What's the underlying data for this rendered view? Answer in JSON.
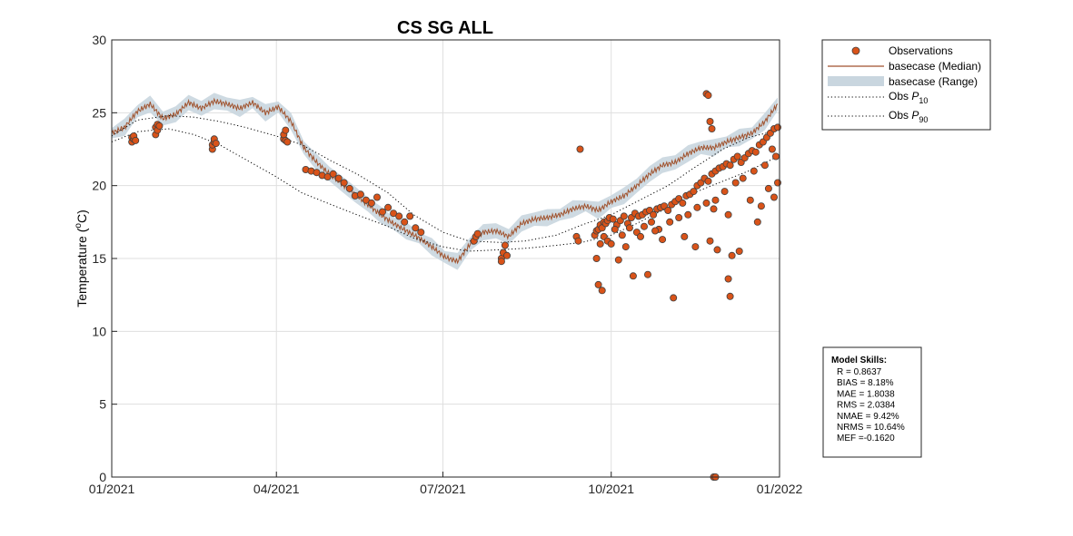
{
  "chart_data": {
    "type": "line",
    "title": "CS SG ALL",
    "ylabel": "Temperature (°C)",
    "ylabel_parts": {
      "main": "Temperature (",
      "sup": "o",
      "unit": "C)"
    },
    "xlabel": "",
    "xlim": [
      "2021-01-01",
      "2022-01-01"
    ],
    "ylim": [
      0,
      30
    ],
    "x_ticks": [
      "2021-01-01",
      "2021-04-01",
      "2021-07-01",
      "2021-10-01",
      "2022-01-01"
    ],
    "x_tick_labels": [
      "01/2021",
      "04/2021",
      "07/2021",
      "10/2021",
      "01/2022"
    ],
    "y_ticks": [
      0,
      5,
      10,
      15,
      20,
      25,
      30
    ],
    "grid": true,
    "legend_position": "outside-top-right",
    "legend": [
      {
        "label": "Observations",
        "kind": "marker"
      },
      {
        "label": "basecase (Median)",
        "kind": "line"
      },
      {
        "label": "basecase (Range)",
        "kind": "patch"
      },
      {
        "label": "Obs P10",
        "label_main": "Obs ",
        "label_p": "P",
        "label_sub": "10",
        "kind": "dotted"
      },
      {
        "label": "Obs P90",
        "label_main": "Obs ",
        "label_p": "P",
        "label_sub": "90",
        "kind": "dotted"
      }
    ],
    "colors": {
      "observations_fill": "#d95319",
      "observations_edge": "#404040",
      "median": "#a0522d",
      "range": "#c9d6df",
      "percentile": "#000000"
    },
    "series": [
      {
        "name": "basecase (Median)",
        "x": [
          "2021-01-01",
          "2021-01-08",
          "2021-01-15",
          "2021-01-22",
          "2021-01-29",
          "2021-02-05",
          "2021-02-12",
          "2021-02-19",
          "2021-02-26",
          "2021-03-05",
          "2021-03-12",
          "2021-03-19",
          "2021-03-26",
          "2021-04-02",
          "2021-04-09",
          "2021-04-16",
          "2021-04-23",
          "2021-04-30",
          "2021-05-07",
          "2021-05-14",
          "2021-05-21",
          "2021-05-28",
          "2021-06-04",
          "2021-06-11",
          "2021-06-18",
          "2021-06-25",
          "2021-07-02",
          "2021-07-09",
          "2021-07-16",
          "2021-07-23",
          "2021-07-30",
          "2021-08-06",
          "2021-08-13",
          "2021-08-20",
          "2021-08-27",
          "2021-09-03",
          "2021-09-10",
          "2021-09-17",
          "2021-09-24",
          "2021-10-01",
          "2021-10-08",
          "2021-10-15",
          "2021-10-22",
          "2021-10-29",
          "2021-11-05",
          "2021-11-12",
          "2021-11-19",
          "2021-11-26",
          "2021-12-03",
          "2021-12-10",
          "2021-12-17",
          "2021-12-24",
          "2021-12-31"
        ],
        "y": [
          23.6,
          24.0,
          25.1,
          25.6,
          24.6,
          24.9,
          25.7,
          25.3,
          25.8,
          25.6,
          25.3,
          25.7,
          25.0,
          25.4,
          24.4,
          22.6,
          21.6,
          20.8,
          20.1,
          19.4,
          18.7,
          18.0,
          17.4,
          16.9,
          16.4,
          15.8,
          15.1,
          14.8,
          16.0,
          16.8,
          16.9,
          16.5,
          17.4,
          17.7,
          17.8,
          18.0,
          18.4,
          18.6,
          18.3,
          18.9,
          19.3,
          20.0,
          20.8,
          21.4,
          21.6,
          22.2,
          22.6,
          22.6,
          23.0,
          23.3,
          23.6,
          24.4,
          25.6
        ]
      },
      {
        "name": "Obs P10",
        "x": [
          "2021-01-01",
          "2021-01-15",
          "2021-02-01",
          "2021-02-15",
          "2021-03-01",
          "2021-03-15",
          "2021-04-01",
          "2021-04-15",
          "2021-05-01",
          "2021-05-15",
          "2021-06-01",
          "2021-06-15",
          "2021-07-01",
          "2021-07-15",
          "2021-08-01",
          "2021-08-15",
          "2021-09-01",
          "2021-09-15",
          "2021-10-01",
          "2021-10-15",
          "2021-11-01",
          "2021-11-15",
          "2021-12-01",
          "2021-12-15",
          "2021-12-31"
        ],
        "y": [
          23.0,
          23.7,
          23.9,
          23.5,
          22.8,
          21.8,
          20.6,
          19.5,
          18.7,
          18.0,
          17.2,
          16.4,
          15.8,
          15.5,
          15.6,
          15.7,
          15.9,
          16.1,
          16.6,
          17.4,
          18.5,
          19.5,
          20.3,
          21.0,
          22.0
        ]
      },
      {
        "name": "Obs P90",
        "x": [
          "2021-01-01",
          "2021-01-15",
          "2021-02-01",
          "2021-02-15",
          "2021-03-01",
          "2021-03-15",
          "2021-04-01",
          "2021-04-15",
          "2021-05-01",
          "2021-05-15",
          "2021-06-01",
          "2021-06-15",
          "2021-07-01",
          "2021-07-15",
          "2021-08-01",
          "2021-08-15",
          "2021-09-01",
          "2021-09-15",
          "2021-10-01",
          "2021-10-15",
          "2021-11-01",
          "2021-11-15",
          "2021-12-01",
          "2021-12-15",
          "2021-12-31"
        ],
        "y": [
          23.4,
          24.5,
          24.8,
          24.7,
          24.4,
          24.0,
          23.4,
          22.8,
          21.7,
          20.8,
          19.5,
          18.0,
          16.8,
          16.2,
          16.1,
          16.2,
          16.6,
          17.3,
          18.0,
          18.9,
          20.0,
          21.2,
          22.5,
          23.3,
          23.8
        ]
      }
    ],
    "observations": {
      "name": "Observations",
      "x": [
        "2021-01-12",
        "2021-01-12",
        "2021-01-13",
        "2021-01-13",
        "2021-01-14",
        "2021-01-25",
        "2021-01-25",
        "2021-01-26",
        "2021-01-26",
        "2021-01-27",
        "2021-02-25",
        "2021-02-25",
        "2021-02-26",
        "2021-02-26",
        "2021-02-27",
        "2021-04-05",
        "2021-04-05",
        "2021-04-06",
        "2021-04-06",
        "2021-04-07",
        "2021-04-17",
        "2021-04-20",
        "2021-04-23",
        "2021-04-26",
        "2021-04-29",
        "2021-05-02",
        "2021-05-05",
        "2021-05-08",
        "2021-05-11",
        "2021-05-14",
        "2021-05-17",
        "2021-05-20",
        "2021-05-23",
        "2021-05-26",
        "2021-05-29",
        "2021-06-01",
        "2021-06-04",
        "2021-06-07",
        "2021-06-10",
        "2021-06-13",
        "2021-06-16",
        "2021-06-19",
        "2021-07-18",
        "2021-07-19",
        "2021-07-20",
        "2021-08-02",
        "2021-08-02",
        "2021-08-03",
        "2021-08-04",
        "2021-08-05",
        "2021-09-12",
        "2021-09-13",
        "2021-09-22",
        "2021-09-23",
        "2021-09-24",
        "2021-09-25",
        "2021-09-26",
        "2021-09-27",
        "2021-09-28",
        "2021-09-29",
        "2021-09-30",
        "2021-10-02",
        "2021-10-04",
        "2021-10-06",
        "2021-10-08",
        "2021-10-10",
        "2021-10-12",
        "2021-10-14",
        "2021-10-16",
        "2021-10-18",
        "2021-10-20",
        "2021-10-22",
        "2021-10-24",
        "2021-10-26",
        "2021-10-28",
        "2021-10-30",
        "2021-11-01",
        "2021-11-03",
        "2021-11-05",
        "2021-11-07",
        "2021-11-09",
        "2021-11-11",
        "2021-11-13",
        "2021-11-15",
        "2021-11-17",
        "2021-11-19",
        "2021-11-21",
        "2021-11-23",
        "2021-11-25",
        "2021-11-27",
        "2021-11-29",
        "2021-12-01",
        "2021-12-03",
        "2021-12-05",
        "2021-12-07",
        "2021-12-09",
        "2021-12-11",
        "2021-12-13",
        "2021-12-15",
        "2021-12-17",
        "2021-12-19",
        "2021-12-21",
        "2021-12-23",
        "2021-12-25",
        "2021-12-27",
        "2021-12-29",
        "2021-12-31",
        "2021-09-23",
        "2021-09-25",
        "2021-09-27",
        "2021-09-29",
        "2021-10-03",
        "2021-10-07",
        "2021-10-11",
        "2021-10-15",
        "2021-10-19",
        "2021-10-23",
        "2021-10-27",
        "2021-11-02",
        "2021-11-07",
        "2021-11-12",
        "2021-11-17",
        "2021-11-22",
        "2021-11-27",
        "2021-12-02",
        "2021-12-08",
        "2021-12-12",
        "2021-12-18",
        "2021-12-24",
        "2021-12-28",
        "2021-12-30",
        "2021-09-24",
        "2021-09-26",
        "2021-10-01",
        "2021-10-05",
        "2021-10-09",
        "2021-10-13",
        "2021-10-17",
        "2021-10-21",
        "2021-10-25",
        "2021-10-29",
        "2021-11-04",
        "2021-11-10",
        "2021-11-16",
        "2021-11-24",
        "2021-11-26",
        "2021-11-28",
        "2021-12-04",
        "2021-12-10",
        "2021-12-16",
        "2021-12-20",
        "2021-12-22",
        "2021-12-26",
        "2021-12-29",
        "2021-12-31",
        "2021-09-14",
        "2021-11-22",
        "2021-11-23",
        "2021-11-24",
        "2021-11-25",
        "2021-11-26",
        "2021-11-27",
        "2021-12-04",
        "2021-12-05",
        "2021-12-06"
      ],
      "y": [
        23.0,
        23.3,
        23.2,
        23.4,
        23.1,
        23.5,
        24.0,
        23.8,
        24.2,
        24.1,
        22.5,
        22.8,
        23.0,
        23.2,
        22.9,
        23.2,
        23.5,
        23.1,
        23.8,
        23.0,
        21.1,
        21.0,
        20.9,
        20.7,
        20.6,
        20.8,
        20.5,
        20.2,
        19.8,
        19.3,
        19.4,
        19.0,
        18.8,
        19.2,
        18.2,
        18.5,
        18.1,
        17.9,
        17.5,
        17.9,
        17.1,
        16.8,
        16.2,
        16.5,
        16.7,
        15.0,
        14.8,
        15.4,
        15.9,
        15.2,
        16.5,
        16.2,
        16.6,
        16.9,
        17.0,
        17.3,
        17.1,
        17.5,
        17.4,
        17.6,
        17.8,
        17.7,
        17.3,
        17.6,
        17.9,
        17.4,
        17.8,
        18.1,
        17.9,
        18.0,
        18.2,
        18.3,
        18.0,
        18.4,
        18.5,
        18.6,
        18.3,
        18.7,
        18.9,
        19.1,
        18.8,
        19.3,
        19.4,
        19.6,
        20.0,
        20.2,
        20.5,
        20.3,
        20.8,
        21.0,
        21.2,
        21.3,
        21.5,
        21.4,
        21.8,
        22.0,
        21.6,
        21.9,
        22.2,
        22.4,
        22.3,
        22.8,
        23.0,
        23.3,
        23.6,
        23.9,
        24.0,
        15.0,
        16.0,
        16.5,
        16.2,
        17.0,
        16.6,
        17.1,
        16.8,
        17.2,
        17.5,
        17.0,
        17.5,
        17.8,
        18.0,
        18.5,
        18.8,
        19.0,
        19.6,
        20.2,
        20.5,
        21.0,
        21.4,
        22.5,
        22.0,
        13.2,
        12.8,
        16.0,
        14.9,
        15.8,
        13.8,
        16.5,
        13.9,
        16.9,
        16.3,
        12.3,
        16.5,
        15.8,
        16.2,
        18.4,
        15.6,
        18.0,
        15.5,
        19.0,
        17.5,
        18.6,
        19.8,
        19.2,
        20.2,
        22.5,
        26.3,
        26.2,
        24.4,
        23.9,
        0.0,
        0.0,
        13.6,
        12.4,
        15.2
      ]
    },
    "model_skills": {
      "title": "Model Skills:",
      "lines": [
        "R    = 0.8637",
        "BIAS = 8.18%",
        "MAE  = 1.8038",
        "RMS  = 2.0384",
        "NMAE = 9.42%",
        "NRMS = 10.64%",
        "MEF  =-0.1620"
      ]
    }
  }
}
